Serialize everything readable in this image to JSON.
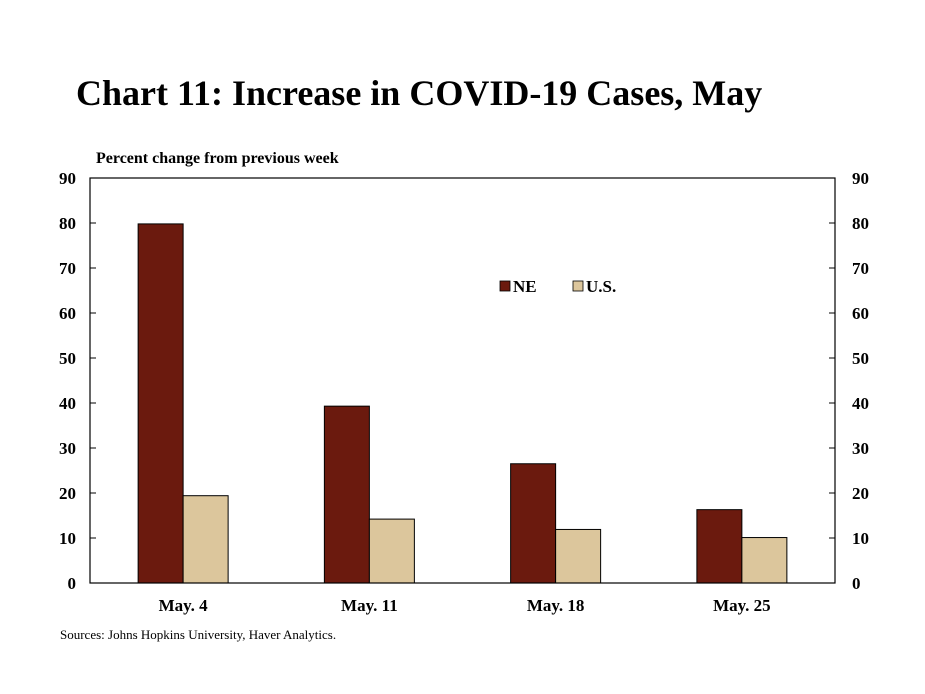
{
  "chart_data": {
    "type": "bar",
    "title": "Chart 11: Increase in COVID-19 Cases, May",
    "ylabel": "Percent change from previous week",
    "xlabel": "",
    "categories": [
      "May. 4",
      "May. 11",
      "May. 18",
      "May. 25"
    ],
    "series": [
      {
        "name": "NE",
        "values": [
          79.8,
          39.3,
          26.5,
          16.3
        ],
        "color": "#6b1a0e"
      },
      {
        "name": "U.S.",
        "values": [
          19.4,
          14.2,
          11.9,
          10.1
        ],
        "color": "#dcc69c"
      }
    ],
    "ylim": [
      0,
      90
    ],
    "yticks": [
      0,
      10,
      20,
      30,
      40,
      50,
      60,
      70,
      80,
      90
    ],
    "secondary_y_axis": true,
    "grid": false,
    "legend_position": "top-right",
    "source": "Sources: Johns Hopkins University, Haver Analytics."
  }
}
